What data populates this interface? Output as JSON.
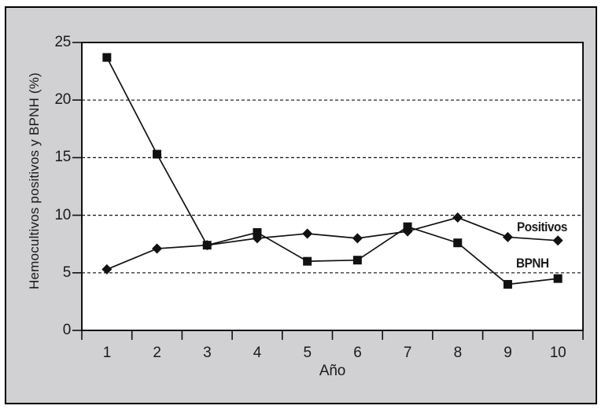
{
  "figure": {
    "panel_background": "#d1d1d3",
    "plot_background": "#ffffff",
    "line_color": "#111111",
    "text_color": "#1a1a1a"
  },
  "chart_data": {
    "type": "line",
    "title": "",
    "xlabel": "Año",
    "ylabel": "Hemocultivos positivos y BPNH (%)",
    "x": [
      1,
      2,
      3,
      4,
      5,
      6,
      7,
      8,
      9,
      10
    ],
    "xlim": [
      0.5,
      10.5
    ],
    "ylim": [
      0,
      25
    ],
    "yticks": [
      0,
      5,
      10,
      15,
      20,
      25
    ],
    "gridlines_y": [
      5,
      10,
      15,
      20
    ],
    "grid_style": "dashed",
    "legend_position": "inline-right-of-lines",
    "series": [
      {
        "name": "Positivos",
        "marker": "diamond",
        "values": [
          5.3,
          7.1,
          7.4,
          8.0,
          8.4,
          8.0,
          8.6,
          9.8,
          8.1,
          7.8
        ]
      },
      {
        "name": "BPNH",
        "marker": "square",
        "values": [
          23.7,
          15.3,
          7.4,
          8.5,
          6.0,
          6.1,
          9.0,
          7.6,
          4.0,
          4.5
        ]
      }
    ]
  }
}
